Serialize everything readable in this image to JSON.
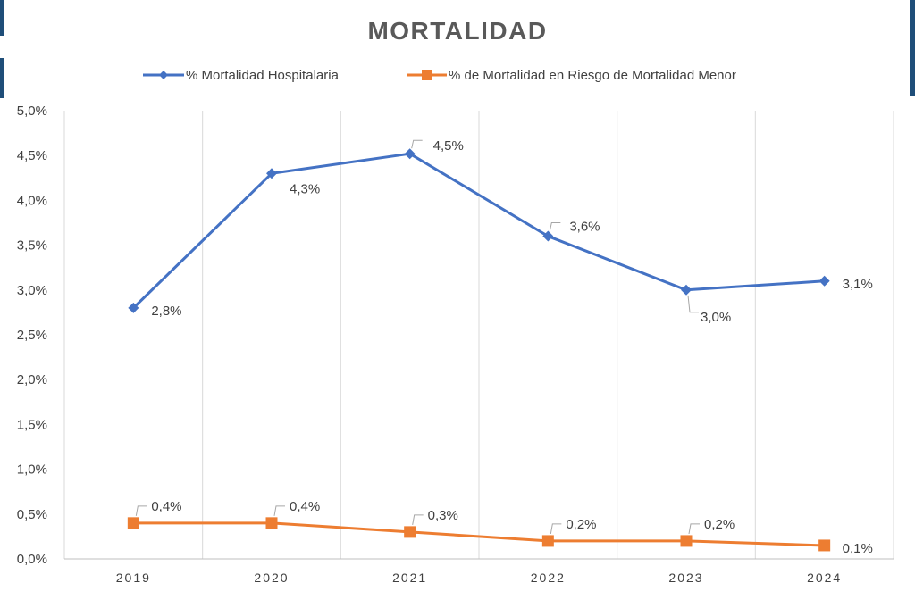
{
  "chart_data": {
    "type": "line",
    "title": "MORTALIDAD",
    "categories": [
      "2019",
      "2020",
      "2021",
      "2022",
      "2023",
      "2024"
    ],
    "y_tick_labels": [
      "0,0%",
      "0,5%",
      "1,0%",
      "1,5%",
      "2,0%",
      "2,5%",
      "3,0%",
      "3,5%",
      "4,0%",
      "4,5%",
      "5,0%"
    ],
    "ylim": [
      0,
      5.0
    ],
    "y_unit": "%",
    "grid": "vertical",
    "legend_position": "top",
    "series": [
      {
        "name": "% Mortalidad Hospitalaria",
        "color": "#4472c4",
        "marker": "diamond",
        "values": [
          2.8,
          4.3,
          4.52,
          3.6,
          3.0,
          3.1
        ],
        "labels": [
          "2,8%",
          "4,3%",
          "4,5%",
          "3,6%",
          "3,0%",
          "3,1%"
        ]
      },
      {
        "name": "% de Mortalidad en Riesgo de Mortalidad Menor",
        "color": "#ed7d31",
        "marker": "square",
        "values": [
          0.4,
          0.4,
          0.3,
          0.2,
          0.2,
          0.15
        ],
        "labels": [
          "0,4%",
          "0,4%",
          "0,3%",
          "0,2%",
          "0,2%",
          "0,1%"
        ]
      }
    ]
  }
}
